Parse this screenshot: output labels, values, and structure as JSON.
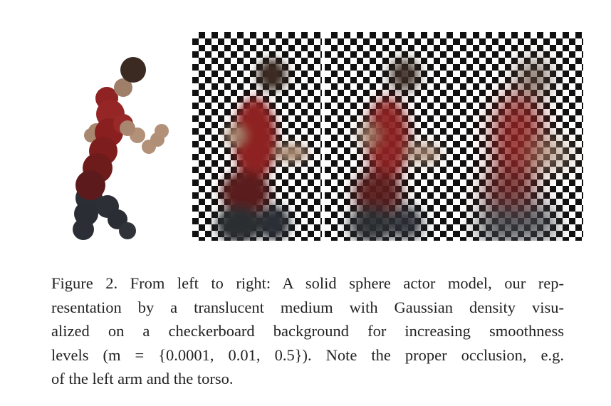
{
  "figure": {
    "caption_lines": [
      "Figure 2. From left to right: A solid sphere actor model, our rep-",
      "resentation by a translucent medium with Gaussian density visu-",
      "alized on a checkerboard background for increasing smoothness",
      "levels (m = {0.0001, 0.01, 0.5}). Note the proper occlusion, e.g.",
      "of the left arm and the torso."
    ],
    "panels": [
      {
        "name": "solid-sphere-model"
      },
      {
        "name": "gaussian-density",
        "m": "0.0001"
      },
      {
        "name": "gaussian-density",
        "m": "0.01"
      },
      {
        "name": "gaussian-density",
        "m": "0.5"
      }
    ],
    "colors": {
      "head": "#3a2a22",
      "skin": "#b08f77",
      "torso": "#8a1f1f",
      "torso_dark": "#5e1a1a",
      "legs": "#2a2d33",
      "checker_dark": "#111111",
      "checker_light": "#ffffff"
    }
  }
}
